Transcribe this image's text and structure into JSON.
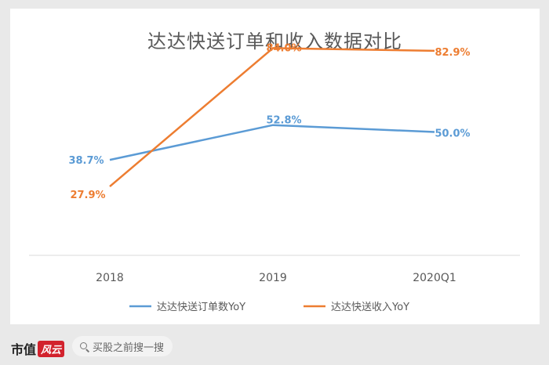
{
  "chart_data": {
    "type": "line",
    "title": "达达快送订单和收入数据对比",
    "categories": [
      "2018",
      "2019",
      "2020Q1"
    ],
    "series": [
      {
        "name": "达达快送订单数YoY",
        "values": [
          38.7,
          52.8,
          50.0
        ],
        "labels": [
          "38.7%",
          "52.8%",
          "50.0%"
        ],
        "color": "#5b9bd5"
      },
      {
        "name": "达达快送收入YoY",
        "values": [
          27.9,
          84.0,
          82.9
        ],
        "labels": [
          "27.9%",
          "84.0%",
          "82.9%"
        ],
        "color": "#ed7d31"
      }
    ],
    "ylim": [
      0,
      100
    ],
    "grid": false,
    "legend_position": "bottom"
  },
  "footer": {
    "brand": "市值",
    "brand_badge": "风云",
    "search_placeholder": "买股之前搜一搜"
  }
}
